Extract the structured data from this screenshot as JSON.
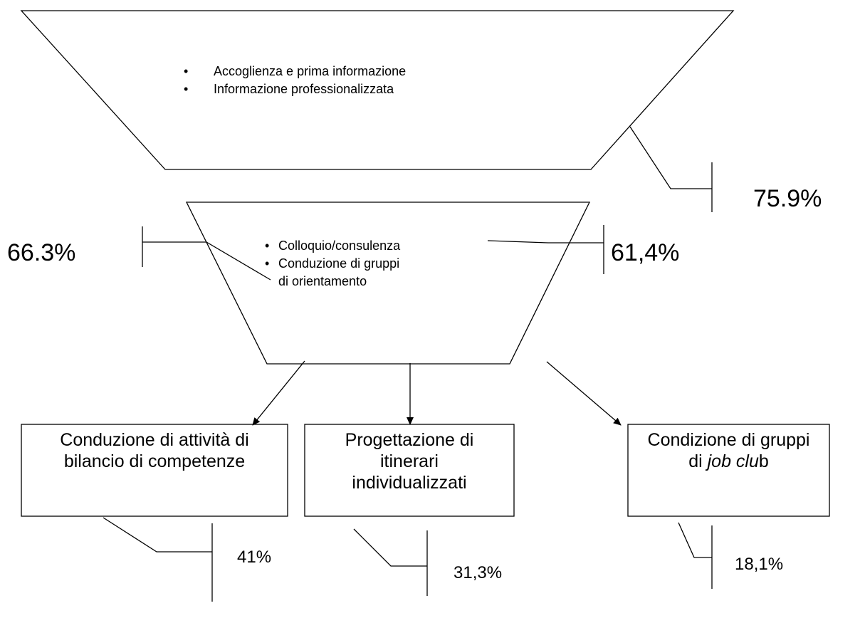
{
  "top": {
    "items": [
      "Accoglienza e prima informazione",
      "Informazione professionalizzata"
    ],
    "percent": "75.9%"
  },
  "middle": {
    "items": [
      "Colloquio/consulenza",
      "Conduzione di gruppi di orientamento"
    ],
    "percent_left": "66.3%",
    "percent_right": "61,4%"
  },
  "boxes": [
    {
      "parts": [
        "Conduzione di attività di bilancio di competenze"
      ],
      "percent": "41%"
    },
    {
      "parts": [
        "Progettazione di itinerari individualizzati"
      ],
      "percent": "31,3%"
    },
    {
      "parts": [
        "Condizione di gruppi di ",
        "job clu",
        "b"
      ],
      "percent": "18,1%"
    }
  ]
}
